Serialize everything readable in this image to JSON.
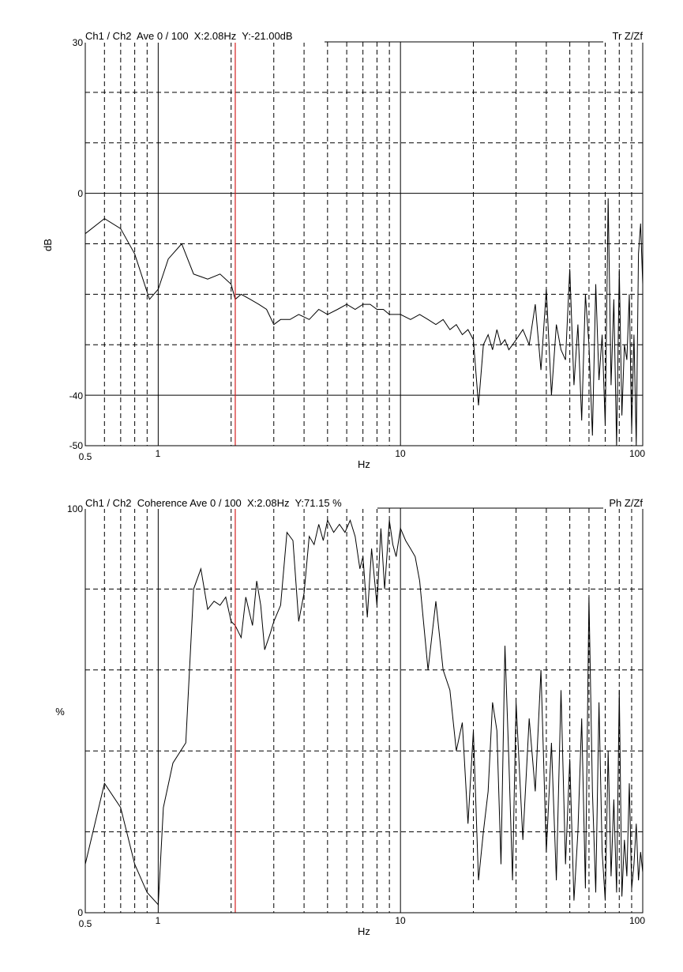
{
  "top_panel": {
    "header_left": "Ch1 / Ch2  Ave 0 / 100  X:2.08Hz  Y:-21.00dB",
    "header_right": "Tr Z/Zf",
    "ylabel": "dB",
    "xlabel": "Hz",
    "y_ticks": [
      "30",
      "0",
      "-40",
      "-50"
    ],
    "x_ticks": [
      "0.5",
      "1",
      "10",
      "100"
    ]
  },
  "bottom_panel": {
    "header_left": "Ch1 / Ch2  Coherence Ave 0 / 100  X:2.08Hz  Y:71.15 %",
    "header_right": "Ph Z/Zf",
    "ylabel": "%",
    "xlabel": "Hz",
    "y_ticks": [
      "100",
      "0"
    ],
    "x_ticks": [
      "0.5",
      "1",
      "10",
      "100"
    ]
  },
  "colors": {
    "trace": "#000000",
    "cursor": "#d62020",
    "grid": "#000000"
  },
  "chart_data": [
    {
      "type": "line",
      "title": "Ch1 / Ch2  Ave 0 / 100  X:2.08Hz  Y:-21.00dB",
      "xlabel": "Hz",
      "ylabel": "dB",
      "x_scale": "log",
      "xlim": [
        0.5,
        100
      ],
      "ylim": [
        -50,
        30
      ],
      "grid": true,
      "cursor_x": 2.08,
      "cursor_y": -21.0,
      "series": [
        {
          "x": [
            0.5,
            0.6,
            0.7,
            0.8,
            0.92,
            1.0,
            1.1,
            1.25,
            1.4,
            1.6,
            1.8,
            2.0,
            2.08,
            2.2,
            2.4,
            2.6,
            2.8,
            3.0,
            3.2,
            3.5,
            3.8,
            4.2,
            4.6,
            5.0,
            5.5,
            6.0,
            6.5,
            7.0,
            7.5,
            8.0,
            8.5,
            9.0,
            10,
            11,
            12,
            13,
            14,
            15,
            16,
            17,
            18,
            19,
            20,
            21,
            22,
            23,
            24,
            25,
            26,
            27,
            28,
            29,
            30,
            32,
            34,
            36,
            38,
            40,
            42,
            44,
            46,
            48,
            50,
            52,
            54,
            56,
            58,
            60,
            62,
            64,
            66,
            68,
            70,
            72,
            74,
            76,
            78,
            80,
            82,
            84,
            86,
            88,
            90,
            92,
            94,
            96,
            98,
            100
          ],
          "values": [
            -8,
            -5,
            -7,
            -12,
            -21,
            -19,
            -13,
            -10,
            -16,
            -17,
            -16,
            -18,
            -21,
            -20,
            -21,
            -22,
            -23,
            -26,
            -25,
            -25,
            -24,
            -25,
            -23,
            -24,
            -23,
            -22,
            -23,
            -22,
            -22,
            -23,
            -23,
            -24,
            -24,
            -25,
            -24,
            -25,
            -26,
            -25,
            -27,
            -26,
            -28,
            -27,
            -29,
            -42,
            -30,
            -28,
            -31,
            -27,
            -30,
            -29,
            -31,
            -30,
            -29,
            -27,
            -30,
            -22,
            -35,
            -19,
            -40,
            -26,
            -31,
            -33,
            -15,
            -38,
            -26,
            -45,
            -20,
            -30,
            -48,
            -18,
            -37,
            -28,
            -46,
            -1,
            -38,
            -21,
            -50,
            -15,
            -44,
            -30,
            -33,
            -20,
            -47,
            -28,
            -50,
            -12,
            -6,
            -18
          ]
        }
      ]
    },
    {
      "type": "line",
      "title": "Ch1 / Ch2  Coherence Ave 0 / 100  X:2.08Hz  Y:71.15 %",
      "xlabel": "Hz",
      "ylabel": "%",
      "x_scale": "log",
      "xlim": [
        0.5,
        100
      ],
      "ylim": [
        0,
        100
      ],
      "grid": true,
      "cursor_x": 2.08,
      "cursor_y": 71.15,
      "series": [
        {
          "x": [
            0.5,
            0.6,
            0.7,
            0.8,
            0.9,
            1.0,
            1.05,
            1.15,
            1.3,
            1.4,
            1.5,
            1.6,
            1.7,
            1.8,
            1.9,
            2.0,
            2.08,
            2.2,
            2.3,
            2.45,
            2.55,
            2.65,
            2.75,
            2.9,
            3.0,
            3.2,
            3.4,
            3.6,
            3.8,
            4.0,
            4.2,
            4.4,
            4.6,
            4.8,
            5.0,
            5.3,
            5.6,
            5.9,
            6.2,
            6.5,
            6.8,
            7.0,
            7.3,
            7.6,
            8.0,
            8.3,
            8.6,
            9.0,
            9.3,
            9.6,
            10,
            10.5,
            11,
            11.5,
            12,
            13,
            14,
            15,
            16,
            17,
            18,
            19,
            20,
            21,
            22,
            23,
            24,
            25,
            26,
            27,
            28,
            29,
            30,
            32,
            34,
            36,
            38,
            40,
            42,
            44,
            46,
            48,
            50,
            52,
            54,
            56,
            58,
            60,
            62,
            64,
            66,
            68,
            70,
            72,
            74,
            76,
            78,
            80,
            82,
            84,
            86,
            88,
            90,
            92,
            94,
            96,
            98,
            100
          ],
          "values": [
            12,
            32,
            26,
            12,
            5,
            2,
            26,
            37,
            42,
            80,
            85,
            75,
            77,
            76,
            78,
            72,
            71,
            68,
            78,
            71,
            82,
            76,
            65,
            69,
            72,
            76,
            94,
            92,
            72,
            79,
            93,
            91,
            96,
            92,
            97,
            94,
            96,
            94,
            97,
            93,
            85,
            88,
            73,
            90,
            76,
            95,
            80,
            97,
            91,
            88,
            95,
            92,
            90,
            88,
            82,
            60,
            77,
            60,
            55,
            40,
            47,
            22,
            45,
            8,
            20,
            30,
            52,
            45,
            12,
            66,
            38,
            8,
            52,
            18,
            48,
            30,
            60,
            15,
            42,
            8,
            55,
            12,
            38,
            3,
            20,
            48,
            6,
            78,
            30,
            5,
            52,
            15,
            3,
            40,
            9,
            28,
            5,
            55,
            4,
            18,
            9,
            32,
            6,
            12,
            22,
            8,
            15,
            10
          ]
        }
      ]
    }
  ]
}
